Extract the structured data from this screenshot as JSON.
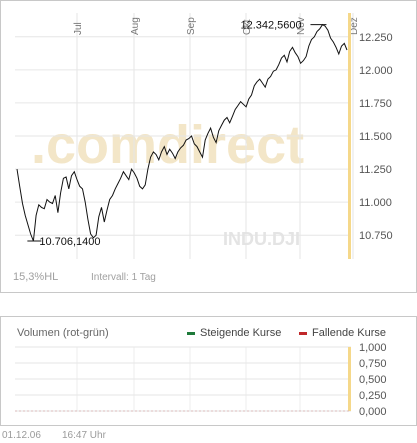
{
  "chart_data": [
    {
      "type": "line",
      "series": [
        {
          "values": [
            11250,
            11120,
            10990,
            10900,
            10830,
            10760,
            10706.14,
            10900,
            10980,
            10960,
            10950,
            11020,
            11000,
            10990,
            11050,
            10920,
            11070,
            11180,
            11190,
            11100,
            11200,
            11230,
            11170,
            11120,
            11100,
            11000,
            10870,
            10760,
            10730,
            10750,
            10890,
            10960,
            10850,
            10940,
            11020,
            11050,
            11100,
            11140,
            11180,
            11230,
            11200,
            11170,
            11250,
            11220,
            11180,
            11120,
            11100,
            11130,
            11250,
            11340,
            11380,
            11360,
            11320,
            11380,
            11420,
            11360,
            11400,
            11370,
            11330,
            11380,
            11410,
            11430,
            11470,
            11480,
            11500,
            11440,
            11420,
            11380,
            11340,
            11470,
            11520,
            11560,
            11490,
            11450,
            11540,
            11580,
            11620,
            11640,
            11600,
            11650,
            11700,
            11730,
            11760,
            11740,
            11720,
            11780,
            11810,
            11880,
            11910,
            11930,
            11900,
            11870,
            11930,
            11950,
            11990,
            12000,
            12040,
            12090,
            12110,
            12060,
            12140,
            12170,
            12130,
            12100,
            12050,
            12070,
            12100,
            12180,
            12230,
            12250,
            12290,
            12310,
            12342.56,
            12330,
            12300,
            12240,
            12210,
            12170,
            12120,
            12180,
            12200,
            12150
          ]
        }
      ],
      "x_ticks": [
        "Jul",
        "Aug",
        "Sep",
        "Okt",
        "Nov",
        "Dez"
      ],
      "y_ticks": [
        "12.250",
        "12.000",
        "11.750",
        "11.500",
        "11.250",
        "11.000",
        "10.750"
      ],
      "ylim": [
        10570,
        12430
      ],
      "annotations": {
        "high": "12.342,5600",
        "low": "10.706,1400"
      },
      "watermark": ".comdirect",
      "symbol": "INDU.DJI",
      "grid": true,
      "line_color": "#111111",
      "today_marker_color": "#f5d88a"
    },
    {
      "type": "bar",
      "title": "Volumen (rot-grün)",
      "series": [
        {
          "name": "Steigende Kurse",
          "color": "#1e7a3a"
        },
        {
          "name": "Fallende Kurse",
          "color": "#c0282a"
        }
      ],
      "y_ticks": [
        "1,000",
        "0,750",
        "0,500",
        "0,250",
        "0,000"
      ],
      "ylim": [
        0,
        1
      ],
      "grid": true
    }
  ],
  "price_panel": {
    "range_label": "15,3%HL",
    "interval_label": "Intervall: 1 Tag"
  },
  "footer": {
    "date": "01.12.06",
    "time": "16:47 Uhr"
  }
}
